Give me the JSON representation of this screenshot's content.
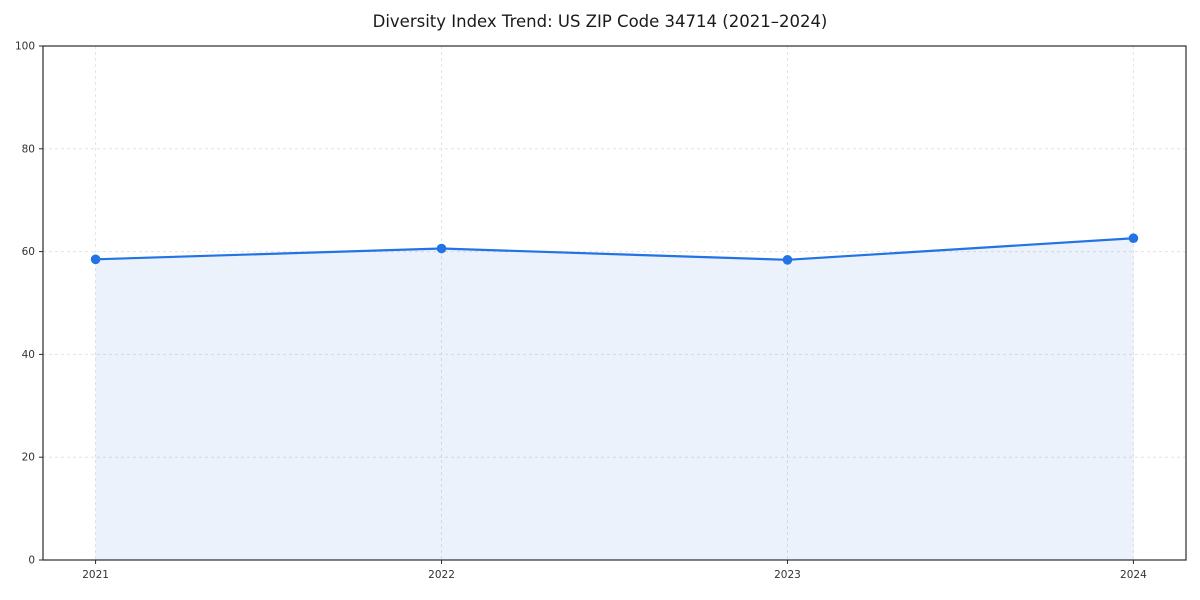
{
  "chart": {
    "title": "Diversity Index Trend: US ZIP Code 34714 (2021–2024)"
  },
  "chart_data": {
    "type": "area",
    "title": "Diversity Index Trend: US ZIP Code 34714 (2021–2024)",
    "categories": [
      "2021",
      "2022",
      "2023",
      "2024"
    ],
    "series": [
      {
        "name": "Diversity Index",
        "values": [
          58.5,
          60.6,
          58.4,
          62.6
        ]
      }
    ],
    "xlabel": "",
    "ylabel": "",
    "ylim": [
      0,
      100
    ],
    "yticks": [
      0,
      20,
      40,
      60,
      80,
      100
    ],
    "grid": true,
    "grid_style": "dashed",
    "legend": false,
    "line_color": "#2273e3",
    "marker_color": "#2273e3",
    "fill_color": "#2273e3",
    "fill_opacity": 0.09,
    "axis_color": "#2b2b2b",
    "grid_color": "#e3e3e3"
  }
}
